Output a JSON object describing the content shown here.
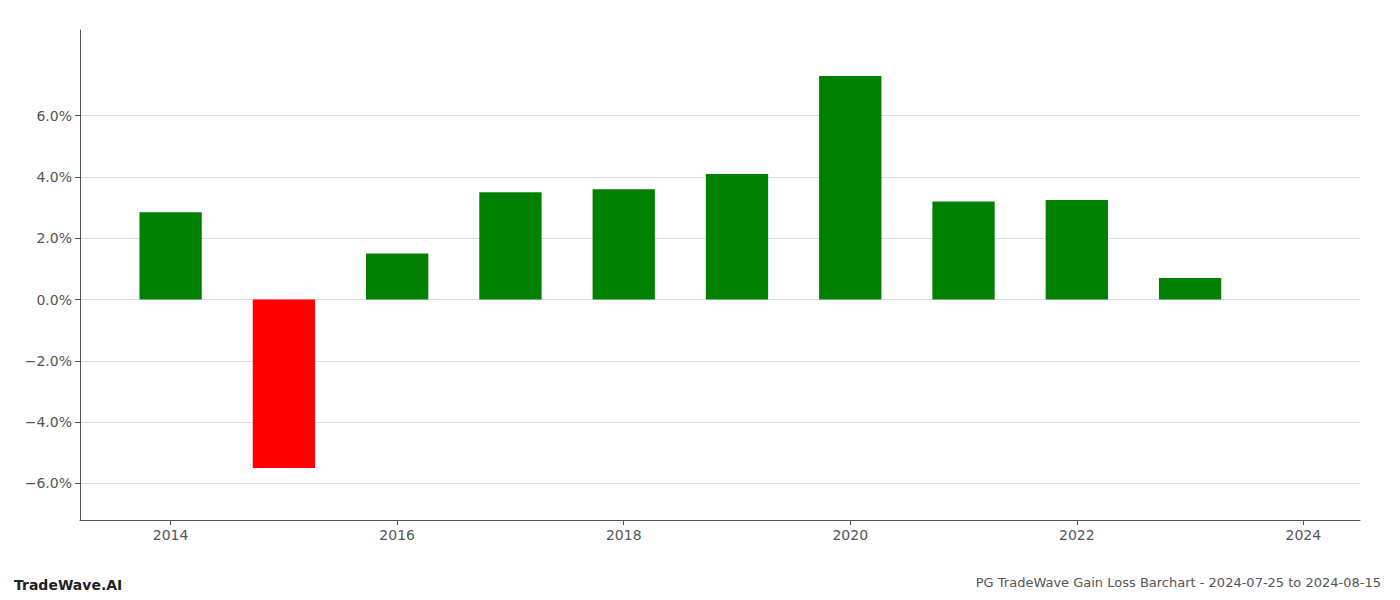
{
  "chart_data": {
    "type": "bar",
    "title": "PG TradeWave Gain Loss Barchart - 2024-07-25 to 2024-08-15",
    "annotations": [
      {
        "text": "TradeWave.AI"
      }
    ],
    "x": [
      2014,
      2015,
      2016,
      2017,
      2018,
      2019,
      2020,
      2021,
      2022,
      2023
    ],
    "values": [
      0.0285,
      -0.055,
      0.015,
      0.035,
      0.036,
      0.041,
      0.073,
      0.032,
      0.0325,
      0.007
    ],
    "colors": [
      "#008000",
      "#ff0000",
      "#008000",
      "#008000",
      "#008000",
      "#008000",
      "#008000",
      "#008000",
      "#008000",
      "#008000"
    ],
    "xlim": [
      2013.2,
      2024.5
    ],
    "xticks": [
      2014,
      2016,
      2018,
      2020,
      2022,
      2024
    ],
    "ylim": [
      -0.072,
      0.088
    ],
    "yticks": [
      {
        "value": -0.06,
        "label": "−6.0%"
      },
      {
        "value": -0.04,
        "label": "−4.0%"
      },
      {
        "value": -0.02,
        "label": "−2.0%"
      },
      {
        "value": 0.0,
        "label": "0.0%"
      },
      {
        "value": 0.02,
        "label": "2.0%"
      },
      {
        "value": 0.04,
        "label": "4.0%"
      },
      {
        "value": 0.06,
        "label": "6.0%"
      }
    ],
    "grid": "y"
  }
}
